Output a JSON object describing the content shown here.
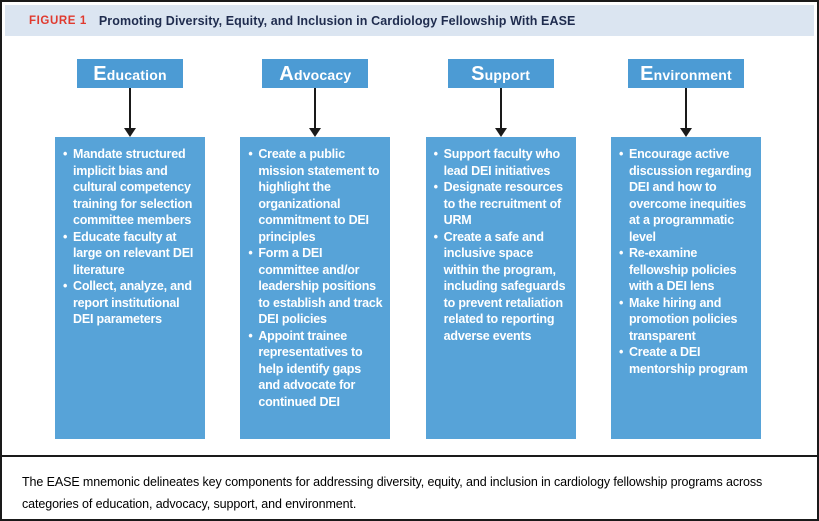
{
  "figure": {
    "label": "FIGURE 1",
    "title": "Promoting Diversity, Equity, and Inclusion in Cardiology Fellowship With EASE"
  },
  "columns": [
    {
      "header": "Education",
      "bullets": [
        "Mandate structured implicit bias and cultural competency training for selection committee members",
        "Educate faculty at large on relevant DEI literature",
        "Collect, analyze, and report institutional DEI parameters"
      ]
    },
    {
      "header": "Advocacy",
      "bullets": [
        "Create a public mission statement to highlight the organizational commitment to DEI principles",
        "Form a DEI committee and/or leadership positions to establish and track DEI policies",
        "Appoint trainee representatives to help identify gaps and advocate for continued DEI"
      ]
    },
    {
      "header": "Support",
      "bullets": [
        "Support faculty who lead DEI initiatives",
        "Designate resources to the recruitment of URM",
        "Create a safe and inclusive space within the program, including safeguards to prevent retaliation related to reporting adverse events"
      ]
    },
    {
      "header": "Environment",
      "bullets": [
        "Encourage active discussion regarding DEI and how to overcome inequities at a programmatic level",
        "Re-examine fellowship policies with a DEI lens",
        "Make hiring and promotion policies transparent",
        "Create a DEI mentorship program"
      ]
    }
  ],
  "caption": "The EASE mnemonic delineates key components for addressing diversity, equity, and inclusion in cardiology fellowship programs across categories of education, advocacy, support, and environment.",
  "colors": {
    "header_blue": "#4c9bd4",
    "box_blue": "#57a3d8",
    "title_bar_bg": "#dbe5f1",
    "figure_label_red": "#e03a2f",
    "title_navy": "#1f2c4e",
    "line_black": "#1a1a1a"
  }
}
